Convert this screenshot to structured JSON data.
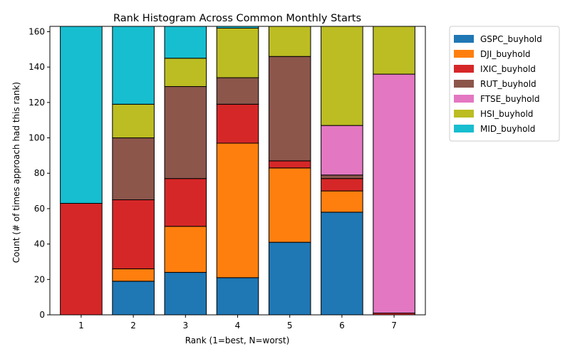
{
  "chart_data": {
    "type": "bar",
    "stacked": true,
    "title": "Rank Histogram Across Common Monthly Starts",
    "xlabel": "Rank (1=best, N=worst)",
    "ylabel": "Count (# of times approach had this rank)",
    "categories": [
      "1",
      "2",
      "3",
      "4",
      "5",
      "6",
      "7"
    ],
    "ylim": [
      0,
      163
    ],
    "yticks": [
      0,
      20,
      40,
      60,
      80,
      100,
      120,
      140,
      160
    ],
    "grid": false,
    "legend_position": "outside-right",
    "series": [
      {
        "name": "GSPC_buyhold",
        "color": "#1f77b4",
        "values": [
          0,
          19,
          24,
          21,
          41,
          58,
          0
        ]
      },
      {
        "name": "DJI_buyhold",
        "color": "#ff7f0e",
        "values": [
          0,
          7,
          26,
          76,
          42,
          12,
          0
        ]
      },
      {
        "name": "IXIC_buyhold",
        "color": "#d62728",
        "values": [
          63,
          39,
          27,
          22,
          4,
          7,
          1
        ]
      },
      {
        "name": "RUT_buyhold",
        "color": "#8c564b",
        "values": [
          0,
          35,
          52,
          15,
          59,
          2,
          0
        ]
      },
      {
        "name": "FTSE_buyhold",
        "color": "#e377c2",
        "values": [
          0,
          0,
          0,
          0,
          0,
          28,
          135
        ]
      },
      {
        "name": "HSI_buyhold",
        "color": "#bcbd22",
        "values": [
          0,
          19,
          16,
          28,
          18,
          56,
          27
        ]
      },
      {
        "name": "MID_buyhold",
        "color": "#17becf",
        "values": [
          100,
          44,
          18,
          1,
          0,
          0,
          0
        ]
      }
    ]
  }
}
